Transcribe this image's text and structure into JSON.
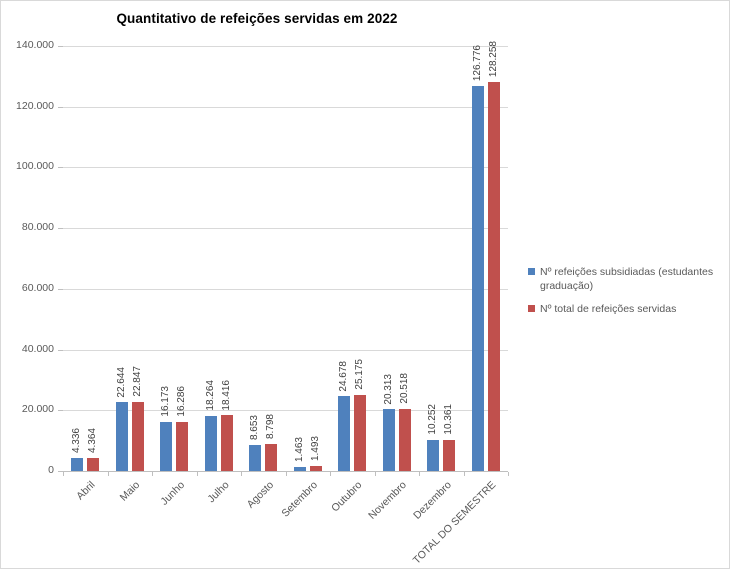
{
  "chart_data": {
    "type": "bar",
    "title": "Quantitativo de refeições servidas em 2022",
    "categories": [
      "Abril",
      "Maio",
      "Junho",
      "Julho",
      "Agosto",
      "Setembro",
      "Outubro",
      "Novembro",
      "Dezembro",
      "TOTAL DO SEMESTRE"
    ],
    "series": [
      {
        "name": "Nº refeições subsidiadas (estudantes graduação)",
        "color": "#4F81BD",
        "values": [
          4336,
          22644,
          16173,
          18264,
          8653,
          1463,
          24678,
          20313,
          10252,
          126776
        ],
        "value_labels": [
          "4.336",
          "22.644",
          "16.173",
          "18.264",
          "8.653",
          "1.463",
          "24.678",
          "20.313",
          "10.252",
          "126.776"
        ]
      },
      {
        "name": "Nº total de refeições servidas",
        "color": "#C0504D",
        "values": [
          4364,
          22847,
          16286,
          18416,
          8798,
          1493,
          25175,
          20518,
          10361,
          128258
        ],
        "value_labels": [
          "4.364",
          "22.847",
          "16.286",
          "18.416",
          "8.798",
          "1.493",
          "25.175",
          "20.518",
          "10.361",
          "128.258"
        ]
      }
    ],
    "y_axis": {
      "min": 0,
      "max": 140000,
      "step": 20000,
      "tick_labels": [
        "0",
        "20.000",
        "40.000",
        "60.000",
        "80.000",
        "100.000",
        "120.000",
        "140.000"
      ]
    },
    "x_axis": {
      "label_rotation_deg": 45
    },
    "grid": true,
    "legend_position": "right",
    "data_labels_rotated": true,
    "colors": {
      "gridline": "#D9D9D9",
      "axis_line": "#BFBFBF",
      "axis_text": "#595959",
      "data_label_text": "#404040",
      "title_text": "#000000",
      "chart_border": "#D9D9D9",
      "background": "#FFFFFF"
    }
  }
}
